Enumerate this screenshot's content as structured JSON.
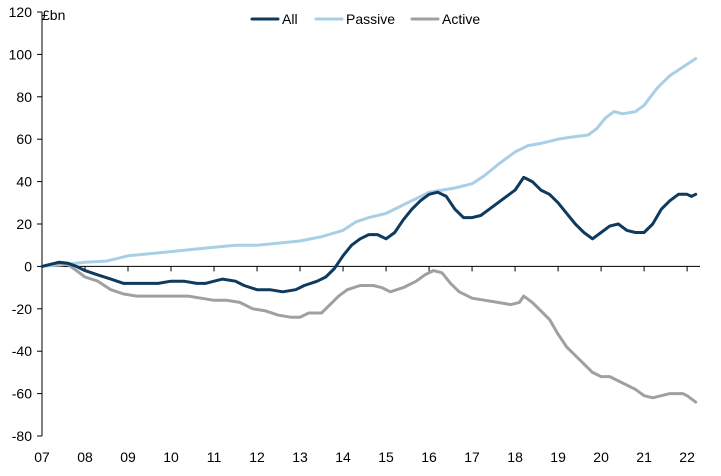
{
  "chart_data": {
    "type": "line",
    "title": "",
    "xlabel": "",
    "ylabel": "£bn",
    "ylim": [
      -80,
      120
    ],
    "yticks": [
      -80,
      -60,
      -40,
      -20,
      0,
      20,
      40,
      60,
      80,
      100,
      120
    ],
    "xlim": [
      2007,
      2022.3
    ],
    "xticks": [
      {
        "value": 2007,
        "label": "07"
      },
      {
        "value": 2008,
        "label": "08"
      },
      {
        "value": 2009,
        "label": "09"
      },
      {
        "value": 2010,
        "label": "10"
      },
      {
        "value": 2011,
        "label": "11"
      },
      {
        "value": 2012,
        "label": "12"
      },
      {
        "value": 2013,
        "label": "13"
      },
      {
        "value": 2014,
        "label": "14"
      },
      {
        "value": 2015,
        "label": "15"
      },
      {
        "value": 2016,
        "label": "16"
      },
      {
        "value": 2017,
        "label": "17"
      },
      {
        "value": 2018,
        "label": "18"
      },
      {
        "value": 2019,
        "label": "19"
      },
      {
        "value": 2020,
        "label": "20"
      },
      {
        "value": 2021,
        "label": "21"
      },
      {
        "value": 2022,
        "label": "22"
      }
    ],
    "grid": false,
    "legend_position": "top-center",
    "series": [
      {
        "name": "All",
        "color": "#0d3a5e",
        "points": [
          [
            2007.0,
            0
          ],
          [
            2007.2,
            1
          ],
          [
            2007.4,
            2
          ],
          [
            2007.6,
            1.5
          ],
          [
            2007.8,
            0
          ],
          [
            2008.0,
            -2
          ],
          [
            2008.3,
            -4
          ],
          [
            2008.6,
            -6
          ],
          [
            2008.9,
            -8
          ],
          [
            2009.1,
            -8
          ],
          [
            2009.4,
            -8
          ],
          [
            2009.7,
            -8
          ],
          [
            2010.0,
            -7
          ],
          [
            2010.3,
            -7
          ],
          [
            2010.6,
            -8
          ],
          [
            2010.8,
            -8
          ],
          [
            2011.0,
            -7
          ],
          [
            2011.2,
            -6
          ],
          [
            2011.5,
            -7
          ],
          [
            2011.7,
            -9
          ],
          [
            2012.0,
            -11
          ],
          [
            2012.3,
            -11
          ],
          [
            2012.6,
            -12
          ],
          [
            2012.9,
            -11
          ],
          [
            2013.1,
            -9
          ],
          [
            2013.4,
            -7
          ],
          [
            2013.6,
            -5
          ],
          [
            2013.8,
            -1
          ],
          [
            2014.0,
            5
          ],
          [
            2014.2,
            10
          ],
          [
            2014.4,
            13
          ],
          [
            2014.6,
            15
          ],
          [
            2014.8,
            15
          ],
          [
            2015.0,
            13
          ],
          [
            2015.2,
            16
          ],
          [
            2015.4,
            22
          ],
          [
            2015.6,
            27
          ],
          [
            2015.8,
            31
          ],
          [
            2016.0,
            34
          ],
          [
            2016.2,
            35
          ],
          [
            2016.4,
            33
          ],
          [
            2016.6,
            27
          ],
          [
            2016.8,
            23
          ],
          [
            2017.0,
            23
          ],
          [
            2017.2,
            24
          ],
          [
            2017.4,
            27
          ],
          [
            2017.6,
            30
          ],
          [
            2017.8,
            33
          ],
          [
            2018.0,
            36
          ],
          [
            2018.2,
            42
          ],
          [
            2018.4,
            40
          ],
          [
            2018.6,
            36
          ],
          [
            2018.8,
            34
          ],
          [
            2019.0,
            30
          ],
          [
            2019.2,
            25
          ],
          [
            2019.4,
            20
          ],
          [
            2019.6,
            16
          ],
          [
            2019.8,
            13
          ],
          [
            2020.0,
            16
          ],
          [
            2020.2,
            19
          ],
          [
            2020.4,
            20
          ],
          [
            2020.6,
            17
          ],
          [
            2020.8,
            16
          ],
          [
            2021.0,
            16
          ],
          [
            2021.2,
            20
          ],
          [
            2021.4,
            27
          ],
          [
            2021.6,
            31
          ],
          [
            2021.8,
            34
          ],
          [
            2022.0,
            34
          ],
          [
            2022.1,
            33
          ],
          [
            2022.2,
            34
          ]
        ]
      },
      {
        "name": "Passive",
        "color": "#a9cfe6",
        "points": [
          [
            2007.0,
            0
          ],
          [
            2007.3,
            0.5
          ],
          [
            2007.6,
            1
          ],
          [
            2008.0,
            2
          ],
          [
            2008.5,
            2.5
          ],
          [
            2008.8,
            4
          ],
          [
            2009.0,
            5
          ],
          [
            2009.5,
            6
          ],
          [
            2010.0,
            7
          ],
          [
            2010.5,
            8
          ],
          [
            2011.0,
            9
          ],
          [
            2011.5,
            10
          ],
          [
            2012.0,
            10
          ],
          [
            2012.5,
            11
          ],
          [
            2013.0,
            12
          ],
          [
            2013.5,
            14
          ],
          [
            2014.0,
            17
          ],
          [
            2014.3,
            21
          ],
          [
            2014.6,
            23
          ],
          [
            2015.0,
            25
          ],
          [
            2015.3,
            28
          ],
          [
            2015.6,
            31
          ],
          [
            2016.0,
            35
          ],
          [
            2016.3,
            36
          ],
          [
            2016.6,
            37
          ],
          [
            2017.0,
            39
          ],
          [
            2017.3,
            43
          ],
          [
            2017.6,
            48
          ],
          [
            2018.0,
            54
          ],
          [
            2018.3,
            57
          ],
          [
            2018.6,
            58
          ],
          [
            2019.0,
            60
          ],
          [
            2019.3,
            61
          ],
          [
            2019.7,
            62
          ],
          [
            2019.9,
            65
          ],
          [
            2020.1,
            70
          ],
          [
            2020.3,
            73
          ],
          [
            2020.5,
            72
          ],
          [
            2020.8,
            73
          ],
          [
            2021.0,
            76
          ],
          [
            2021.3,
            84
          ],
          [
            2021.6,
            90
          ],
          [
            2021.9,
            94
          ],
          [
            2022.2,
            98
          ]
        ]
      },
      {
        "name": "Active",
        "color": "#a0a0a0",
        "points": [
          [
            2007.0,
            0
          ],
          [
            2007.2,
            1
          ],
          [
            2007.4,
            1.5
          ],
          [
            2007.6,
            1
          ],
          [
            2007.8,
            -2
          ],
          [
            2008.0,
            -5
          ],
          [
            2008.3,
            -7
          ],
          [
            2008.6,
            -11
          ],
          [
            2008.9,
            -13
          ],
          [
            2009.2,
            -14
          ],
          [
            2009.5,
            -14
          ],
          [
            2009.8,
            -14
          ],
          [
            2010.1,
            -14
          ],
          [
            2010.4,
            -14
          ],
          [
            2010.7,
            -15
          ],
          [
            2011.0,
            -16
          ],
          [
            2011.3,
            -16
          ],
          [
            2011.6,
            -17
          ],
          [
            2011.9,
            -20
          ],
          [
            2012.2,
            -21
          ],
          [
            2012.5,
            -23
          ],
          [
            2012.8,
            -24
          ],
          [
            2013.0,
            -24
          ],
          [
            2013.2,
            -22
          ],
          [
            2013.5,
            -22
          ],
          [
            2013.7,
            -18
          ],
          [
            2013.9,
            -14
          ],
          [
            2014.1,
            -11
          ],
          [
            2014.4,
            -9
          ],
          [
            2014.7,
            -9
          ],
          [
            2014.9,
            -10
          ],
          [
            2015.1,
            -12
          ],
          [
            2015.4,
            -10
          ],
          [
            2015.7,
            -7
          ],
          [
            2015.9,
            -4
          ],
          [
            2016.1,
            -2
          ],
          [
            2016.3,
            -3
          ],
          [
            2016.5,
            -8
          ],
          [
            2016.7,
            -12
          ],
          [
            2017.0,
            -15
          ],
          [
            2017.3,
            -16
          ],
          [
            2017.6,
            -17
          ],
          [
            2017.9,
            -18
          ],
          [
            2018.1,
            -17
          ],
          [
            2018.2,
            -14
          ],
          [
            2018.4,
            -17
          ],
          [
            2018.6,
            -21
          ],
          [
            2018.8,
            -25
          ],
          [
            2019.0,
            -32
          ],
          [
            2019.2,
            -38
          ],
          [
            2019.4,
            -42
          ],
          [
            2019.6,
            -46
          ],
          [
            2019.8,
            -50
          ],
          [
            2020.0,
            -52
          ],
          [
            2020.2,
            -52
          ],
          [
            2020.4,
            -54
          ],
          [
            2020.6,
            -56
          ],
          [
            2020.8,
            -58
          ],
          [
            2021.0,
            -61
          ],
          [
            2021.2,
            -62
          ],
          [
            2021.4,
            -61
          ],
          [
            2021.6,
            -60
          ],
          [
            2021.9,
            -60
          ],
          [
            2022.0,
            -61
          ],
          [
            2022.2,
            -64
          ]
        ]
      }
    ]
  }
}
